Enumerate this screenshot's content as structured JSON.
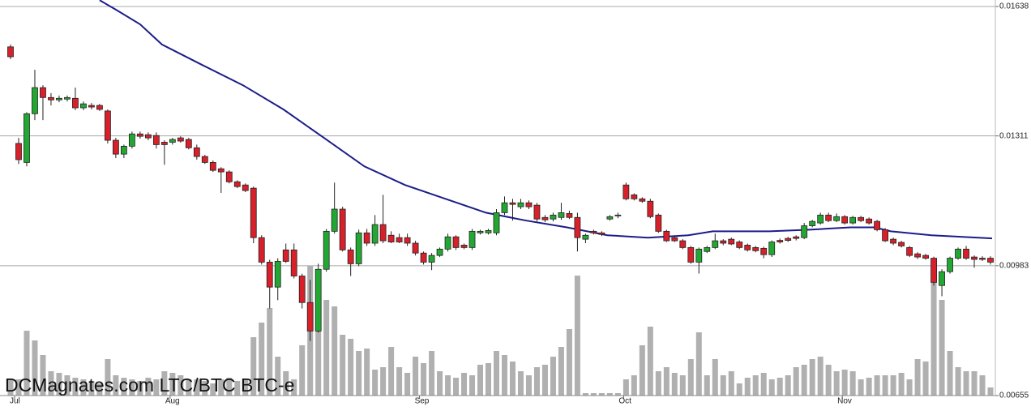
{
  "chart_data": {
    "type": "candlestick",
    "watermark": "DCMagnates.com LTC/BTC BTC-e",
    "ylim": [
      0.00655,
      0.01638
    ],
    "yticks": [
      0.01638,
      0.01311,
      0.00983,
      0.00655
    ],
    "grid": true,
    "xticks": [
      {
        "value": 0.5,
        "label": "Jul"
      },
      {
        "value": 19.7,
        "label": "Aug"
      },
      {
        "value": 50.5,
        "label": "Sep"
      },
      {
        "value": 75.7,
        "label": "Oct"
      },
      {
        "value": 102.7,
        "label": "Nov"
      }
    ],
    "up_color": "#22a832",
    "down_color": "#d8202a",
    "volume_color": "#b0b0b0",
    "vlim": [
      0,
      480
    ],
    "open": [
      0.01536,
      0.01292,
      0.01244,
      0.01367,
      0.01433,
      0.01408,
      0.01402,
      0.01404,
      0.01406,
      0.01382,
      0.01388,
      0.01388,
      0.01374,
      0.013,
      0.01265,
      0.01285,
      0.01316,
      0.01314,
      0.01312,
      0.01295,
      0.01295,
      0.01306,
      0.01302,
      0.01281,
      0.01259,
      0.01244,
      0.01228,
      0.0122,
      0.01195,
      0.01187,
      0.01179,
      0.01054,
      0.00992,
      0.00929,
      0.01023,
      0.01023,
      0.00957,
      0.0089,
      0.00818,
      0.00974,
      0.0107,
      0.01126,
      0.01023,
      0.00988,
      0.01066,
      0.0104,
      0.01087,
      0.0106,
      0.01054,
      0.01054,
      0.0104,
      0.01015,
      0.00992,
      0.01009,
      0.01025,
      0.01056,
      0.01035,
      0.01029,
      0.01066,
      0.01066,
      0.01066,
      0.01117,
      0.01142,
      0.01132,
      0.01142,
      0.01136,
      0.01105,
      0.01101,
      0.01105,
      0.01115,
      0.01105,
      0.0105,
      0.0107,
      0.01066,
      0.01101,
      0.01109,
      0.01187,
      0.01162,
      0.01152,
      0.01146,
      0.01111,
      0.0107,
      0.01054,
      0.01046,
      0.01029,
      0.00992,
      0.01019,
      0.01029,
      0.01046,
      0.0105,
      0.01043,
      0.01035,
      0.01029,
      0.01027,
      0.01011,
      0.01047,
      0.01052,
      0.01056,
      0.01054,
      0.01084,
      0.01091,
      0.01111,
      0.01097,
      0.01107,
      0.01091,
      0.01105,
      0.01101,
      0.01095,
      0.01074,
      0.0105,
      0.01042,
      0.01029,
      0.01013,
      0.01009,
      0.01002,
      0.00933,
      0.00968,
      0.01002,
      0.01025,
      0.01005,
      0.01002,
      0.01002
    ],
    "high": [
      0.01542,
      0.01306,
      0.01371,
      0.01478,
      0.01439,
      0.01419,
      0.01413,
      0.01413,
      0.01433,
      0.01398,
      0.01394,
      0.01392,
      0.01378,
      0.01306,
      0.01289,
      0.01322,
      0.01322,
      0.0132,
      0.0132,
      0.013,
      0.01306,
      0.0131,
      0.01306,
      0.01289,
      0.01263,
      0.01249,
      0.01232,
      0.01224,
      0.01199,
      0.01191,
      0.01183,
      0.0106,
      0.00998,
      0.01002,
      0.01039,
      0.01039,
      0.00963,
      0.00947,
      0.00988,
      0.01076,
      0.01193,
      0.01132,
      0.01029,
      0.01074,
      0.01076,
      0.01111,
      0.01162,
      0.0107,
      0.01064,
      0.01064,
      0.01046,
      0.01019,
      0.01015,
      0.01029,
      0.01064,
      0.0106,
      0.01039,
      0.01076,
      0.01074,
      0.01076,
      0.01126,
      0.01158,
      0.01152,
      0.01152,
      0.01148,
      0.01142,
      0.01111,
      0.01117,
      0.01142,
      0.01122,
      0.01117,
      0.01064,
      0.01074,
      0.0107,
      0.01111,
      0.01117,
      0.01193,
      0.01166,
      0.01156,
      0.01152,
      0.01115,
      0.01074,
      0.01058,
      0.0105,
      0.01033,
      0.01029,
      0.01033,
      0.01064,
      0.0105,
      0.01054,
      0.01047,
      0.01039,
      0.01033,
      0.01031,
      0.01047,
      0.01052,
      0.01056,
      0.0106,
      0.01091,
      0.01099,
      0.01117,
      0.01117,
      0.01115,
      0.01111,
      0.01109,
      0.01109,
      0.01105,
      0.01099,
      0.01078,
      0.01054,
      0.01046,
      0.01033,
      0.01017,
      0.01013,
      0.01006,
      0.00974,
      0.01006,
      0.01029,
      0.01033,
      0.01009,
      0.01007,
      0.01007
    ],
    "low": [
      0.01505,
      0.0124,
      0.01234,
      0.01351,
      0.01351,
      0.01388,
      0.01396,
      0.01398,
      0.01376,
      0.01376,
      0.01378,
      0.01374,
      0.01292,
      0.01255,
      0.01255,
      0.01279,
      0.01304,
      0.013,
      0.01279,
      0.01238,
      0.01289,
      0.01294,
      0.01277,
      0.01251,
      0.0124,
      0.0122,
      0.01167,
      0.01191,
      0.01179,
      0.01169,
      0.0104,
      0.00986,
      0.00875,
      0.00896,
      0.0099,
      0.00951,
      0.00875,
      0.00793,
      0.00814,
      0.00968,
      0.01064,
      0.01019,
      0.00957,
      0.00982,
      0.01033,
      0.01033,
      0.0104,
      0.0104,
      0.0104,
      0.01033,
      0.01009,
      0.00986,
      0.00972,
      0.01005,
      0.01019,
      0.01023,
      0.01025,
      0.01023,
      0.01062,
      0.01062,
      0.0106,
      0.01111,
      0.01097,
      0.01126,
      0.01126,
      0.01095,
      0.01093,
      0.01095,
      0.01099,
      0.01101,
      0.01019,
      0.0104,
      0.01062,
      0.01058,
      0.01097,
      0.01103,
      0.01148,
      0.01148,
      0.01142,
      0.01103,
      0.01066,
      0.01043,
      0.01043,
      0.01025,
      0.00988,
      0.00963,
      0.01015,
      0.01025,
      0.01035,
      0.01035,
      0.01025,
      0.01019,
      0.01017,
      0.01002,
      0.01005,
      0.01039,
      0.01043,
      0.01047,
      0.0105,
      0.0108,
      0.01087,
      0.01093,
      0.01093,
      0.01087,
      0.01087,
      0.01093,
      0.01087,
      0.0107,
      0.01043,
      0.01035,
      0.01029,
      0.01005,
      0.01,
      0.00998,
      0.00933,
      0.00906,
      0.00963,
      0.00998,
      0.00998,
      0.00978,
      0.00995,
      0.00986
    ],
    "close": [
      0.01511,
      0.01251,
      0.01367,
      0.01433,
      0.01408,
      0.01402,
      0.01406,
      0.01408,
      0.01382,
      0.01392,
      0.01384,
      0.01378,
      0.013,
      0.01265,
      0.01285,
      0.01316,
      0.0131,
      0.01306,
      0.01289,
      0.01289,
      0.01302,
      0.01298,
      0.01281,
      0.01259,
      0.01244,
      0.01224,
      0.0122,
      0.01195,
      0.01183,
      0.01173,
      0.01054,
      0.00992,
      0.00929,
      0.00994,
      0.00994,
      0.00957,
      0.0089,
      0.00818,
      0.00974,
      0.0107,
      0.01126,
      0.01023,
      0.00988,
      0.01066,
      0.0104,
      0.01087,
      0.01046,
      0.01043,
      0.01043,
      0.0104,
      0.01015,
      0.00992,
      0.01009,
      0.01025,
      0.01056,
      0.01029,
      0.01029,
      0.0107,
      0.0107,
      0.01072,
      0.01117,
      0.01142,
      0.01138,
      0.01142,
      0.01132,
      0.01101,
      0.01099,
      0.01111,
      0.01117,
      0.01105,
      0.01054,
      0.0106,
      0.01066,
      0.01062,
      0.01107,
      0.01111,
      0.01152,
      0.01152,
      0.01146,
      0.01107,
      0.0107,
      0.01046,
      0.01046,
      0.01029,
      0.00992,
      0.01025,
      0.01029,
      0.01046,
      0.0104,
      0.01038,
      0.01029,
      0.01023,
      0.01021,
      0.01011,
      0.01043,
      0.01043,
      0.01047,
      0.01052,
      0.01084,
      0.01095,
      0.01111,
      0.01097,
      0.01107,
      0.01091,
      0.01105,
      0.01097,
      0.01091,
      0.01074,
      0.01046,
      0.0104,
      0.01033,
      0.01009,
      0.01005,
      0.01002,
      0.00941,
      0.00968,
      0.01002,
      0.01025,
      0.01002,
      0.00999,
      0.00999,
      0.00992
    ],
    "volume": [
      20,
      20,
      80,
      68,
      50,
      30,
      28,
      25,
      22,
      20,
      18,
      15,
      45,
      25,
      22,
      20,
      18,
      22,
      20,
      30,
      28,
      25,
      20,
      20,
      18,
      15,
      20,
      22,
      18,
      20,
      72,
      90,
      108,
      48,
      30,
      20,
      62,
      160,
      152,
      118,
      110,
      75,
      70,
      55,
      58,
      32,
      35,
      60,
      35,
      28,
      48,
      40,
      55,
      30,
      25,
      22,
      28,
      25,
      38,
      40,
      55,
      50,
      42,
      30,
      25,
      35,
      38,
      48,
      60,
      82,
      148,
      3,
      3,
      3,
      3,
      3,
      20,
      25,
      62,
      85,
      30,
      35,
      28,
      25,
      45,
      78,
      25,
      45,
      25,
      30,
      15,
      22,
      25,
      28,
      20,
      22,
      25,
      35,
      38,
      45,
      48,
      38,
      30,
      32,
      30,
      20,
      22,
      25,
      25,
      25,
      28,
      20,
      45,
      42,
      160,
      118,
      55,
      35,
      30,
      30,
      25,
      10
    ],
    "moving_average": {
      "color": "#1c1c8a",
      "x": [
        11,
        13,
        16,
        18.7,
        23.7,
        28.7,
        33.7,
        38.7,
        43.7,
        48.7,
        53.7,
        58.7,
        63.7,
        68.7,
        73.7,
        78.7,
        83.7,
        86.7,
        93.7,
        98.7,
        103.7,
        106.7,
        108.7,
        113.7,
        121.2
      ],
      "values": [
        0.01654,
        0.0163,
        0.01593,
        0.01542,
        0.0149,
        0.01439,
        0.01378,
        0.01306,
        0.01234,
        0.01187,
        0.01152,
        0.01117,
        0.01097,
        0.0108,
        0.0106,
        0.01054,
        0.0106,
        0.0107,
        0.0107,
        0.01074,
        0.0108,
        0.0108,
        0.0107,
        0.0106,
        0.01052
      ]
    }
  }
}
